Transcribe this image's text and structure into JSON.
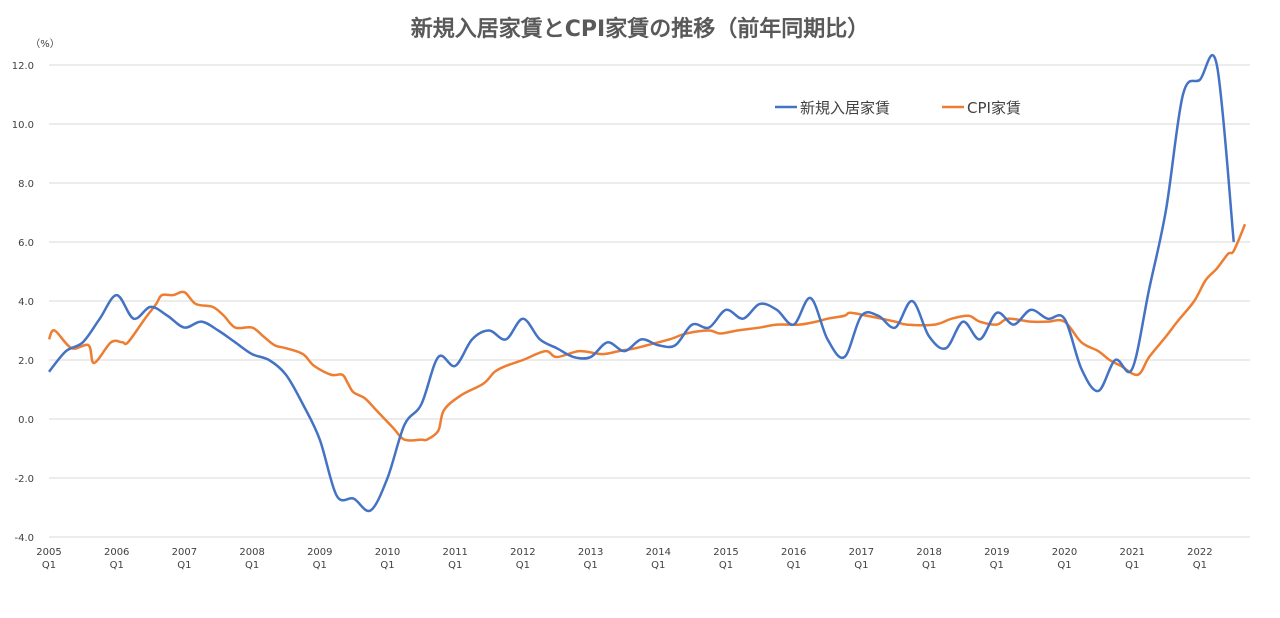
{
  "chart_data": {
    "type": "line",
    "title": "新規入居家賃とCPI家賃の推移（前年同期比）",
    "ylabel": "（%）",
    "xlabel": "",
    "ylim": [
      -4,
      12
    ],
    "yticks": [
      "12.0",
      "10.0",
      "8.0",
      "6.0",
      "4.0",
      "2.0",
      "0.0",
      "-2.0",
      "-4.0"
    ],
    "ytick_values": [
      12,
      10,
      8,
      6,
      4,
      2,
      0,
      -2,
      -4
    ],
    "xticks": [
      {
        "year": "2005",
        "q": "Q1"
      },
      {
        "year": "2006",
        "q": "Q1"
      },
      {
        "year": "2007",
        "q": "Q1"
      },
      {
        "year": "2008",
        "q": "Q1"
      },
      {
        "year": "2009",
        "q": "Q1"
      },
      {
        "year": "2010",
        "q": "Q1"
      },
      {
        "year": "2011",
        "q": "Q1"
      },
      {
        "year": "2012",
        "q": "Q1"
      },
      {
        "year": "2013",
        "q": "Q1"
      },
      {
        "year": "2014",
        "q": "Q1"
      },
      {
        "year": "2015",
        "q": "Q1"
      },
      {
        "year": "2016",
        "q": "Q1"
      },
      {
        "year": "2017",
        "q": "Q1"
      },
      {
        "year": "2018",
        "q": "Q1"
      },
      {
        "year": "2019",
        "q": "Q1"
      },
      {
        "year": "2020",
        "q": "Q1"
      },
      {
        "year": "2021",
        "q": "Q1"
      },
      {
        "year": "2022",
        "q": "Q1"
      }
    ],
    "grid": true,
    "legend_position": "top-right",
    "series": [
      {
        "name": "新規入居家賃",
        "color": "#4472C4",
        "frequency": "quarterly",
        "start": "2005Q1",
        "values": [
          1.6,
          2.3,
          2.6,
          3.4,
          4.2,
          3.4,
          3.8,
          3.5,
          3.1,
          3.3,
          3.0,
          2.6,
          2.2,
          2.0,
          1.5,
          0.5,
          -0.7,
          -2.6,
          -2.7,
          -3.1,
          -2.0,
          -0.2,
          0.5,
          2.1,
          1.8,
          2.7,
          3.0,
          2.7,
          3.4,
          2.7,
          2.4,
          2.1,
          2.1,
          2.6,
          2.3,
          2.7,
          2.5,
          2.5,
          3.2,
          3.1,
          3.7,
          3.4,
          3.9,
          3.7,
          3.2,
          4.1,
          2.7,
          2.1,
          3.5,
          3.5,
          3.1,
          4.0,
          2.8,
          2.4,
          3.3,
          2.7,
          3.6,
          3.2,
          3.7,
          3.4,
          3.4,
          1.7,
          0.95,
          2.0,
          1.7,
          4.4,
          7.1,
          11.0,
          11.5,
          12.0,
          6.0
        ]
      },
      {
        "name": "CPI家賃",
        "color": "#ED7D31",
        "frequency": "monthly",
        "points": [
          [
            "2005-01",
            2.7
          ],
          [
            "2005-02",
            3.0
          ],
          [
            "2005-05",
            2.4
          ],
          [
            "2005-08",
            2.5
          ],
          [
            "2005-09",
            1.9
          ],
          [
            "2005-12",
            2.6
          ],
          [
            "2006-02",
            2.6
          ],
          [
            "2006-03",
            2.6
          ],
          [
            "2006-06",
            3.4
          ],
          [
            "2006-08",
            3.9
          ],
          [
            "2006-09",
            4.2
          ],
          [
            "2006-11",
            4.2
          ],
          [
            "2007-01",
            4.3
          ],
          [
            "2007-03",
            3.9
          ],
          [
            "2007-06",
            3.8
          ],
          [
            "2007-08",
            3.5
          ],
          [
            "2007-10",
            3.1
          ],
          [
            "2008-01",
            3.1
          ],
          [
            "2008-03",
            2.8
          ],
          [
            "2008-05",
            2.5
          ],
          [
            "2008-07",
            2.4
          ],
          [
            "2008-10",
            2.2
          ],
          [
            "2008-12",
            1.8
          ],
          [
            "2009-03",
            1.5
          ],
          [
            "2009-05",
            1.5
          ],
          [
            "2009-06",
            1.2
          ],
          [
            "2009-07",
            0.9
          ],
          [
            "2009-09",
            0.7
          ],
          [
            "2009-11",
            0.3
          ],
          [
            "2010-02",
            -0.3
          ],
          [
            "2010-04",
            -0.7
          ],
          [
            "2010-07",
            -0.7
          ],
          [
            "2010-08",
            -0.7
          ],
          [
            "2010-10",
            -0.4
          ],
          [
            "2010-11",
            0.3
          ],
          [
            "2011-02",
            0.8
          ],
          [
            "2011-06",
            1.2
          ],
          [
            "2011-08",
            1.6
          ],
          [
            "2011-10",
            1.8
          ],
          [
            "2012-01",
            2.0
          ],
          [
            "2012-05",
            2.3
          ],
          [
            "2012-07",
            2.1
          ],
          [
            "2012-11",
            2.3
          ],
          [
            "2013-03",
            2.2
          ],
          [
            "2013-06",
            2.3
          ],
          [
            "2013-09",
            2.4
          ],
          [
            "2013-11",
            2.5
          ],
          [
            "2014-03",
            2.7
          ],
          [
            "2014-06",
            2.9
          ],
          [
            "2014-10",
            3.0
          ],
          [
            "2014-12",
            2.9
          ],
          [
            "2015-03",
            3.0
          ],
          [
            "2015-07",
            3.1
          ],
          [
            "2015-10",
            3.2
          ],
          [
            "2016-02",
            3.2
          ],
          [
            "2016-05",
            3.3
          ],
          [
            "2016-07",
            3.4
          ],
          [
            "2016-10",
            3.5
          ],
          [
            "2016-11",
            3.6
          ],
          [
            "2017-02",
            3.5
          ],
          [
            "2017-07",
            3.3
          ],
          [
            "2017-09",
            3.2
          ],
          [
            "2018-02",
            3.2
          ],
          [
            "2018-05",
            3.4
          ],
          [
            "2018-08",
            3.5
          ],
          [
            "2018-10",
            3.3
          ],
          [
            "2019-01",
            3.2
          ],
          [
            "2019-03",
            3.4
          ],
          [
            "2019-07",
            3.3
          ],
          [
            "2019-10",
            3.3
          ],
          [
            "2020-01",
            3.3
          ],
          [
            "2020-04",
            2.6
          ],
          [
            "2020-07",
            2.3
          ],
          [
            "2020-09",
            2.0
          ],
          [
            "2020-11",
            1.8
          ],
          [
            "2021-02",
            1.5
          ],
          [
            "2021-04",
            2.1
          ],
          [
            "2021-07",
            2.8
          ],
          [
            "2021-09",
            3.3
          ],
          [
            "2021-12",
            4.0
          ],
          [
            "2022-02",
            4.7
          ],
          [
            "2022-04",
            5.1
          ],
          [
            "2022-06",
            5.6
          ],
          [
            "2022-07",
            5.7
          ],
          [
            "2022-09",
            6.6
          ]
        ]
      }
    ]
  }
}
